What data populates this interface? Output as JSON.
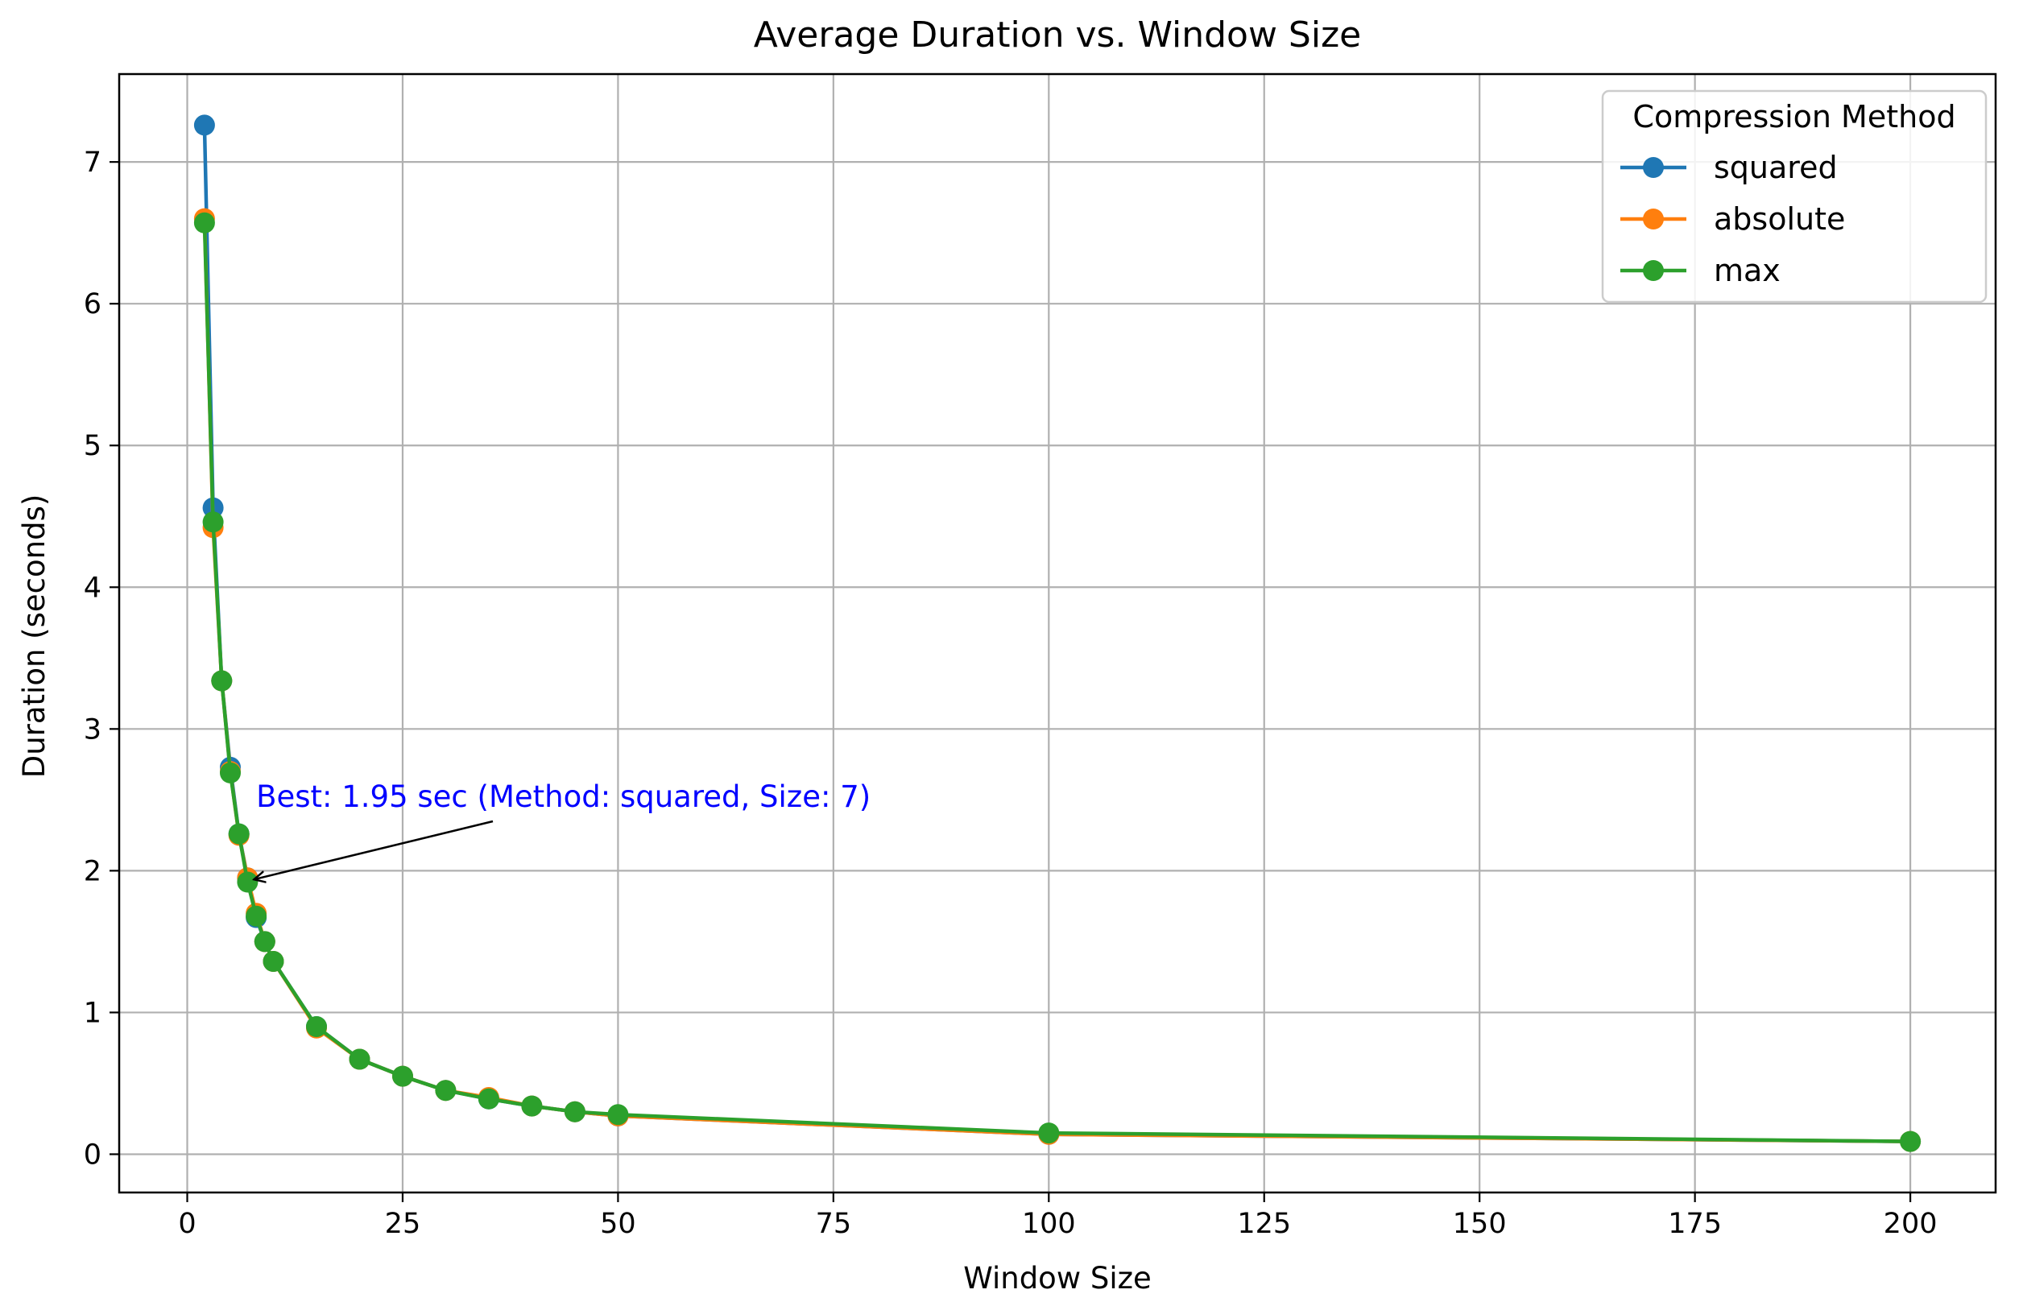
{
  "chart_data": {
    "type": "line",
    "title": "Average Duration vs. Window Size",
    "xlabel": "Window Size",
    "ylabel": "Duration (seconds)",
    "xlim": [
      -7.9,
      209.9
    ],
    "ylim": [
      -0.27,
      7.62
    ],
    "grid": true,
    "legend_placement": "top-right",
    "x_ticks": [
      0,
      25,
      50,
      75,
      100,
      125,
      150,
      175,
      200
    ],
    "y_ticks": [
      0,
      1,
      2,
      3,
      4,
      5,
      6,
      7
    ],
    "x": [
      2,
      3,
      4,
      5,
      6,
      7,
      8,
      9,
      10,
      15,
      20,
      25,
      30,
      35,
      40,
      45,
      50,
      100,
      200
    ],
    "series": [
      {
        "name": "squared",
        "color": "#1f77b4",
        "values": [
          7.26,
          4.56,
          3.34,
          2.73,
          2.26,
          1.95,
          1.67,
          1.5,
          1.36,
          0.9,
          0.67,
          0.55,
          0.45,
          0.39,
          0.34,
          0.3,
          0.27,
          0.14,
          0.09
        ]
      },
      {
        "name": "absolute",
        "color": "#ff7f0e",
        "values": [
          6.6,
          4.42,
          3.34,
          2.7,
          2.25,
          1.95,
          1.7,
          1.5,
          1.36,
          0.89,
          0.67,
          0.55,
          0.45,
          0.4,
          0.34,
          0.3,
          0.27,
          0.14,
          0.09
        ]
      },
      {
        "name": "max",
        "color": "#2ca02c",
        "values": [
          6.57,
          4.46,
          3.34,
          2.69,
          2.26,
          1.92,
          1.68,
          1.5,
          1.36,
          0.9,
          0.67,
          0.55,
          0.45,
          0.39,
          0.34,
          0.3,
          0.28,
          0.15,
          0.09
        ]
      }
    ],
    "legend_title": "Compression Method",
    "annotation": {
      "text": "Best: 1.95 sec (Method: squared, Size: 7)",
      "color": "#0000ff",
      "point": [
        7,
        1.95
      ],
      "text_anchor_data": [
        8,
        2.45
      ]
    }
  }
}
